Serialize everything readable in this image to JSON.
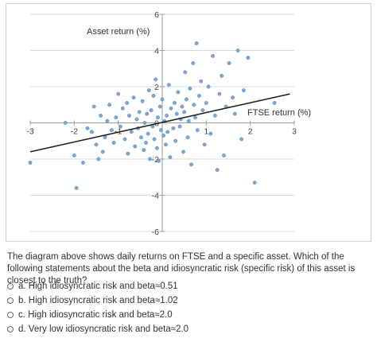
{
  "question": {
    "text": "The diagram above shows daily returns on FTSE and a specific asset. Which of the following statements about the beta and idiosyncratic risk (specific risk) of this asset is closest to the truth?"
  },
  "options": [
    {
      "label": "a. High idiosyncratic risk and beta≈0.51"
    },
    {
      "label": "b. High idiosyncratic risk and beta≈1.02"
    },
    {
      "label": "c. High idiosyncratic risk and beta≈2.0"
    },
    {
      "label": "d. Very low idiosyncratic risk and beta≈2.0"
    }
  ],
  "chart_data": {
    "type": "scatter",
    "xlabel": "FTSE return (%)",
    "ylabel": "Asset return (%)",
    "xlim": [
      -3,
      3
    ],
    "ylim": [
      -6,
      6
    ],
    "x_ticks": [
      "-3",
      "-2",
      "-1",
      "0",
      "1",
      "2",
      "3"
    ],
    "y_ticks": [
      "6",
      "4",
      "2",
      "0",
      "-2",
      "-4",
      "-6"
    ],
    "grid": true,
    "point_color": "#7ba7d6",
    "line_color": "#222222",
    "regression_line": {
      "x": [
        -3,
        2.9
      ],
      "y": [
        -1.6,
        1.6
      ]
    },
    "points": [
      [
        -3.0,
        -2.2
      ],
      [
        -2.2,
        0.0
      ],
      [
        -2.0,
        -1.8
      ],
      [
        -1.95,
        -3.6
      ],
      [
        -1.8,
        -2.2
      ],
      [
        -1.7,
        -0.3
      ],
      [
        -1.6,
        -0.5
      ],
      [
        -1.55,
        0.9
      ],
      [
        -1.5,
        -1.2
      ],
      [
        -1.45,
        -2.0
      ],
      [
        -1.4,
        0.4
      ],
      [
        -1.35,
        -1.6
      ],
      [
        -1.3,
        -0.8
      ],
      [
        -1.25,
        0.1
      ],
      [
        -1.2,
        1.0
      ],
      [
        -1.15,
        -0.4
      ],
      [
        -1.1,
        -1.1
      ],
      [
        -1.05,
        0.3
      ],
      [
        -1.0,
        1.6
      ],
      [
        -0.95,
        -0.2
      ],
      [
        -0.9,
        0.8
      ],
      [
        -0.85,
        -0.9
      ],
      [
        -0.8,
        1.1
      ],
      [
        -0.78,
        -1.7
      ],
      [
        -0.75,
        0.4
      ],
      [
        -0.7,
        -0.5
      ],
      [
        -0.65,
        1.4
      ],
      [
        -0.62,
        -1.3
      ],
      [
        -0.58,
        0.2
      ],
      [
        -0.55,
        -0.3
      ],
      [
        -0.52,
        0.6
      ],
      [
        -0.48,
        -0.8
      ],
      [
        -0.45,
        1.2
      ],
      [
        -0.42,
        -1.5
      ],
      [
        -0.4,
        0.0
      ],
      [
        -0.37,
        -1.1
      ],
      [
        -0.35,
        0.5
      ],
      [
        -0.32,
        -0.6
      ],
      [
        -0.3,
        1.8
      ],
      [
        -0.28,
        -2.0
      ],
      [
        -0.25,
        0.7
      ],
      [
        -0.22,
        -0.2
      ],
      [
        -0.2,
        1.5
      ],
      [
        -0.18,
        -0.9
      ],
      [
        -0.15,
        2.4
      ],
      [
        -0.12,
        -1.4
      ],
      [
        -0.1,
        0.3
      ],
      [
        -0.08,
        -2.1
      ],
      [
        -0.05,
        0.9
      ],
      [
        -0.03,
        -0.4
      ],
      [
        0.0,
        1.3
      ],
      [
        0.03,
        -0.7
      ],
      [
        0.05,
        0.1
      ],
      [
        0.08,
        -1.2
      ],
      [
        0.1,
        0.4
      ],
      [
        0.12,
        -0.5
      ],
      [
        0.15,
        2.1
      ],
      [
        0.18,
        -1.9
      ],
      [
        0.2,
        0.8
      ],
      [
        0.25,
        -0.3
      ],
      [
        0.28,
        1.1
      ],
      [
        0.3,
        -1.0
      ],
      [
        0.33,
        0.5
      ],
      [
        0.36,
        1.7
      ],
      [
        0.4,
        -0.2
      ],
      [
        0.42,
        0.2
      ],
      [
        0.45,
        0.9
      ],
      [
        0.48,
        -1.6
      ],
      [
        0.5,
        0.6
      ],
      [
        0.52,
        2.8
      ],
      [
        0.55,
        1.3
      ],
      [
        0.58,
        -0.8
      ],
      [
        0.6,
        0.1
      ],
      [
        0.63,
        1.9
      ],
      [
        0.66,
        -2.3
      ],
      [
        0.7,
        3.3
      ],
      [
        0.72,
        1.0
      ],
      [
        0.75,
        0.3
      ],
      [
        0.78,
        4.4
      ],
      [
        0.8,
        -0.4
      ],
      [
        0.84,
        1.5
      ],
      [
        0.88,
        2.3
      ],
      [
        0.92,
        0.7
      ],
      [
        0.96,
        -1.2
      ],
      [
        1.0,
        1.1
      ],
      [
        1.05,
        2.0
      ],
      [
        1.1,
        -0.6
      ],
      [
        1.15,
        3.7
      ],
      [
        1.2,
        0.4
      ],
      [
        1.25,
        -2.6
      ],
      [
        1.3,
        1.6
      ],
      [
        1.35,
        2.6
      ],
      [
        1.4,
        -1.8
      ],
      [
        1.45,
        0.9
      ],
      [
        1.52,
        3.3
      ],
      [
        1.6,
        1.4
      ],
      [
        1.65,
        0.5
      ],
      [
        1.72,
        4.0
      ],
      [
        1.8,
        -0.9
      ],
      [
        1.85,
        1.8
      ],
      [
        1.95,
        3.6
      ],
      [
        2.1,
        -3.3
      ],
      [
        2.55,
        1.1
      ]
    ]
  }
}
